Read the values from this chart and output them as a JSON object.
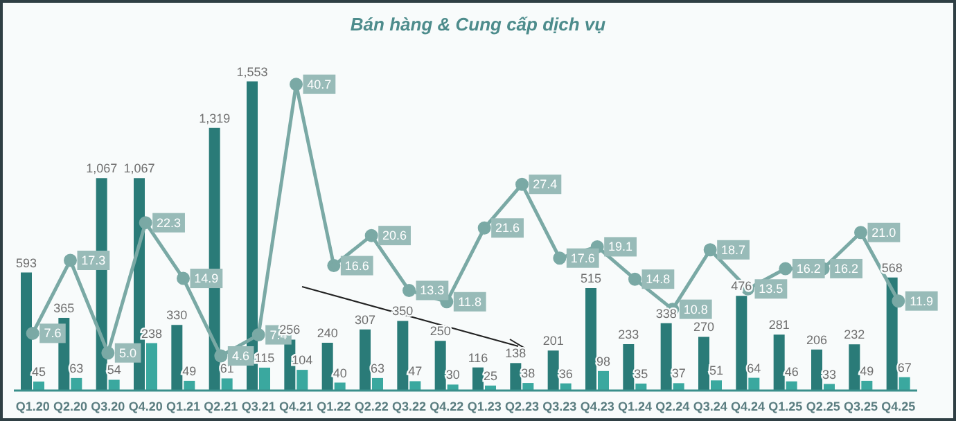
{
  "chart_data": {
    "type": "bar",
    "title": "Bán hàng & Cung cấp dịch vụ",
    "categories": [
      "Q1.20",
      "Q2.20",
      "Q3.20",
      "Q4.20",
      "Q1.21",
      "Q2.21",
      "Q3.21",
      "Q4.21",
      "Q1.22",
      "Q2.22",
      "Q3.22",
      "Q4.22",
      "Q1.23",
      "Q2.23",
      "Q3.23",
      "Q4.23",
      "Q1.24",
      "Q2.24",
      "Q3.24",
      "Q4.24",
      "Q1.25",
      "Q2.25",
      "Q3.25",
      "Q4.25"
    ],
    "series": [
      {
        "color": "#2a7b78",
        "values": [
          593,
          365,
          1067,
          1067,
          330,
          1319,
          1553,
          256,
          240,
          307,
          350,
          250,
          116,
          138,
          201,
          515,
          233,
          338,
          270,
          476,
          281,
          206,
          232,
          568
        ],
        "value_labels": [
          "593",
          "365",
          "1,067",
          "1,067",
          "330",
          "1,319",
          "1,553",
          "256",
          "240",
          "307",
          "350",
          "250",
          "116",
          "138",
          "201",
          "515",
          "233",
          "338",
          "270",
          "476",
          "281",
          "206",
          "232",
          "568"
        ]
      },
      {
        "color": "#3aa89f",
        "values": [
          45,
          63,
          54,
          238,
          49,
          61,
          115,
          104,
          40,
          63,
          47,
          30,
          25,
          38,
          36,
          98,
          35,
          37,
          51,
          64,
          46,
          33,
          49,
          67
        ]
      },
      {
        "type": "line",
        "axis": "y2",
        "color": "#7aa9a5",
        "values": [
          7.6,
          17.3,
          5.0,
          22.3,
          14.9,
          4.6,
          7.4,
          40.7,
          16.6,
          20.6,
          13.3,
          11.8,
          21.6,
          27.4,
          17.6,
          19.1,
          14.8,
          10.8,
          18.7,
          13.5,
          16.2,
          16.2,
          21.0,
          11.9
        ],
        "value_labels": [
          "7.6",
          "17.3",
          "5.0",
          "22.3",
          "14.9",
          "4.6",
          "7.4",
          "40.7",
          "16.6",
          "20.6",
          "13.3",
          "11.8",
          "21.6",
          "27.4",
          "17.6",
          "19.1",
          "14.8",
          "10.8",
          "18.7",
          "13.5",
          "16.2",
          "16.2",
          "21.0",
          "11.9"
        ]
      }
    ],
    "tick_labels": "x",
    "data_labels": true,
    "grid": false,
    "legend": false,
    "marker": "circle",
    "line_style": "solid"
  }
}
